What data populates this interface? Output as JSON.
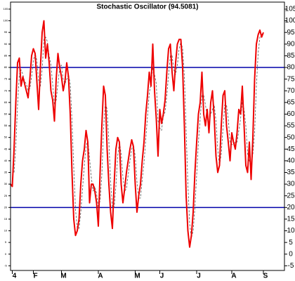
{
  "chart_data": {
    "type": "line",
    "title": "Stochastic Oscillator (94.5081)",
    "xlim": [
      0,
      156
    ],
    "xticks": [
      {
        "value": 1,
        "label": "4"
      },
      {
        "value": 13,
        "label": "F"
      },
      {
        "value": 29,
        "label": "M"
      },
      {
        "value": 50,
        "label": "A"
      },
      {
        "value": 71,
        "label": "M"
      },
      {
        "value": 85,
        "label": "J"
      },
      {
        "value": 106,
        "label": "J"
      },
      {
        "value": 126,
        "label": "A"
      },
      {
        "value": 144,
        "label": "S"
      }
    ],
    "ylim": [
      -7,
      108
    ],
    "yticks": [
      -5,
      0,
      5,
      10,
      15,
      20,
      25,
      30,
      35,
      40,
      45,
      50,
      55,
      60,
      65,
      70,
      75,
      80,
      85,
      90,
      95,
      100,
      105
    ],
    "hlines": [
      {
        "value": 80,
        "color": "#0000aa"
      },
      {
        "value": 20,
        "color": "#0000aa"
      }
    ],
    "series": [
      {
        "color": "#ee0000",
        "dashed": false,
        "values": [
          30,
          29,
          45,
          65,
          82,
          84,
          72,
          76,
          73,
          70,
          67,
          75,
          85,
          88,
          86,
          74,
          62,
          80,
          95,
          100,
          84,
          90,
          82,
          70,
          66,
          57,
          75,
          86,
          80,
          76,
          70,
          74,
          82,
          76,
          60,
          35,
          15,
          8,
          10,
          15,
          30,
          40,
          45,
          53,
          48,
          22,
          30,
          30,
          27,
          22,
          12,
          35,
          55,
          72,
          68,
          45,
          30,
          18,
          11,
          30,
          45,
          50,
          48,
          30,
          22,
          28,
          35,
          40,
          45,
          49,
          46,
          30,
          18,
          25,
          30,
          40,
          48,
          60,
          68,
          78,
          72,
          90,
          70,
          58,
          42,
          62,
          56,
          60,
          66,
          78,
          88,
          90,
          78,
          70,
          82,
          90,
          92,
          92,
          80,
          55,
          25,
          10,
          3,
          8,
          18,
          35,
          48,
          60,
          65,
          78,
          60,
          55,
          62,
          52,
          65,
          70,
          58,
          42,
          35,
          38,
          55,
          68,
          70,
          55,
          48,
          40,
          52,
          48,
          45,
          52,
          62,
          60,
          72,
          55,
          38,
          35,
          48,
          32,
          50,
          75,
          90,
          94,
          96,
          93,
          95
        ]
      },
      {
        "color": "#555555",
        "dashed": true,
        "values": [
          null,
          null,
          35,
          46,
          64,
          77,
          79,
          77,
          74,
          73,
          70,
          71,
          76,
          83,
          86,
          83,
          74,
          72,
          79,
          92,
          93,
          91,
          85,
          81,
          73,
          64,
          66,
          73,
          80,
          81,
          75,
          73,
          75,
          77,
          73,
          57,
          37,
          19,
          11,
          11,
          18,
          28,
          38,
          46,
          49,
          41,
          33,
          27,
          29,
          26,
          20,
          23,
          34,
          54,
          65,
          62,
          48,
          31,
          20,
          20,
          29,
          42,
          48,
          43,
          33,
          27,
          28,
          34,
          40,
          45,
          47,
          42,
          31,
          24,
          24,
          32,
          39,
          49,
          59,
          69,
          73,
          80,
          77,
          73,
          57,
          54,
          53,
          59,
          61,
          68,
          77,
          85,
          85,
          79,
          77,
          81,
          88,
          91,
          88,
          76,
          53,
          30,
          13,
          7,
          10,
          20,
          34,
          48,
          58,
          68,
          68,
          64,
          59,
          56,
          60,
          62,
          64,
          57,
          45,
          38,
          43,
          54,
          64,
          64,
          58,
          48,
          47,
          47,
          48,
          48,
          53,
          58,
          65,
          62,
          55,
          43,
          40,
          38,
          43,
          52,
          72,
          86,
          93,
          94,
          95
        ]
      }
    ]
  }
}
